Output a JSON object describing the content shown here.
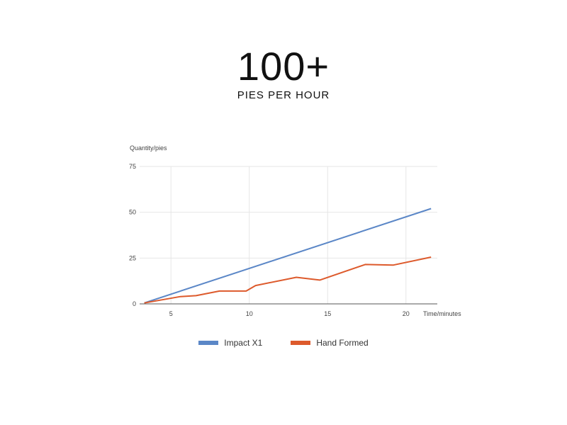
{
  "headline": {
    "value": "100+",
    "subtitle": "PIES PER HOUR"
  },
  "chart_data": {
    "type": "line",
    "xlabel": "Time/minutes",
    "ylabel": "Quantity/pies",
    "xlim": [
      3,
      22
    ],
    "ylim": [
      0,
      75
    ],
    "x_ticks": [
      5,
      10,
      15,
      20
    ],
    "y_ticks": [
      0,
      25,
      50,
      75
    ],
    "grid": true,
    "legend_position": "bottom",
    "series": [
      {
        "name": "Impact X1",
        "color": "#5b87c7",
        "x": [
          3.3,
          21.6
        ],
        "y": [
          0.5,
          52
        ]
      },
      {
        "name": "Hand Formed",
        "color": "#dd5a2c",
        "x": [
          3.3,
          5.6,
          6.6,
          8.1,
          9.8,
          10.4,
          13.0,
          14.5,
          17.4,
          19.2,
          21.6
        ],
        "y": [
          0.5,
          4,
          4.5,
          7,
          7,
          10,
          14.5,
          13,
          21.5,
          21.2,
          25.5
        ]
      }
    ]
  }
}
